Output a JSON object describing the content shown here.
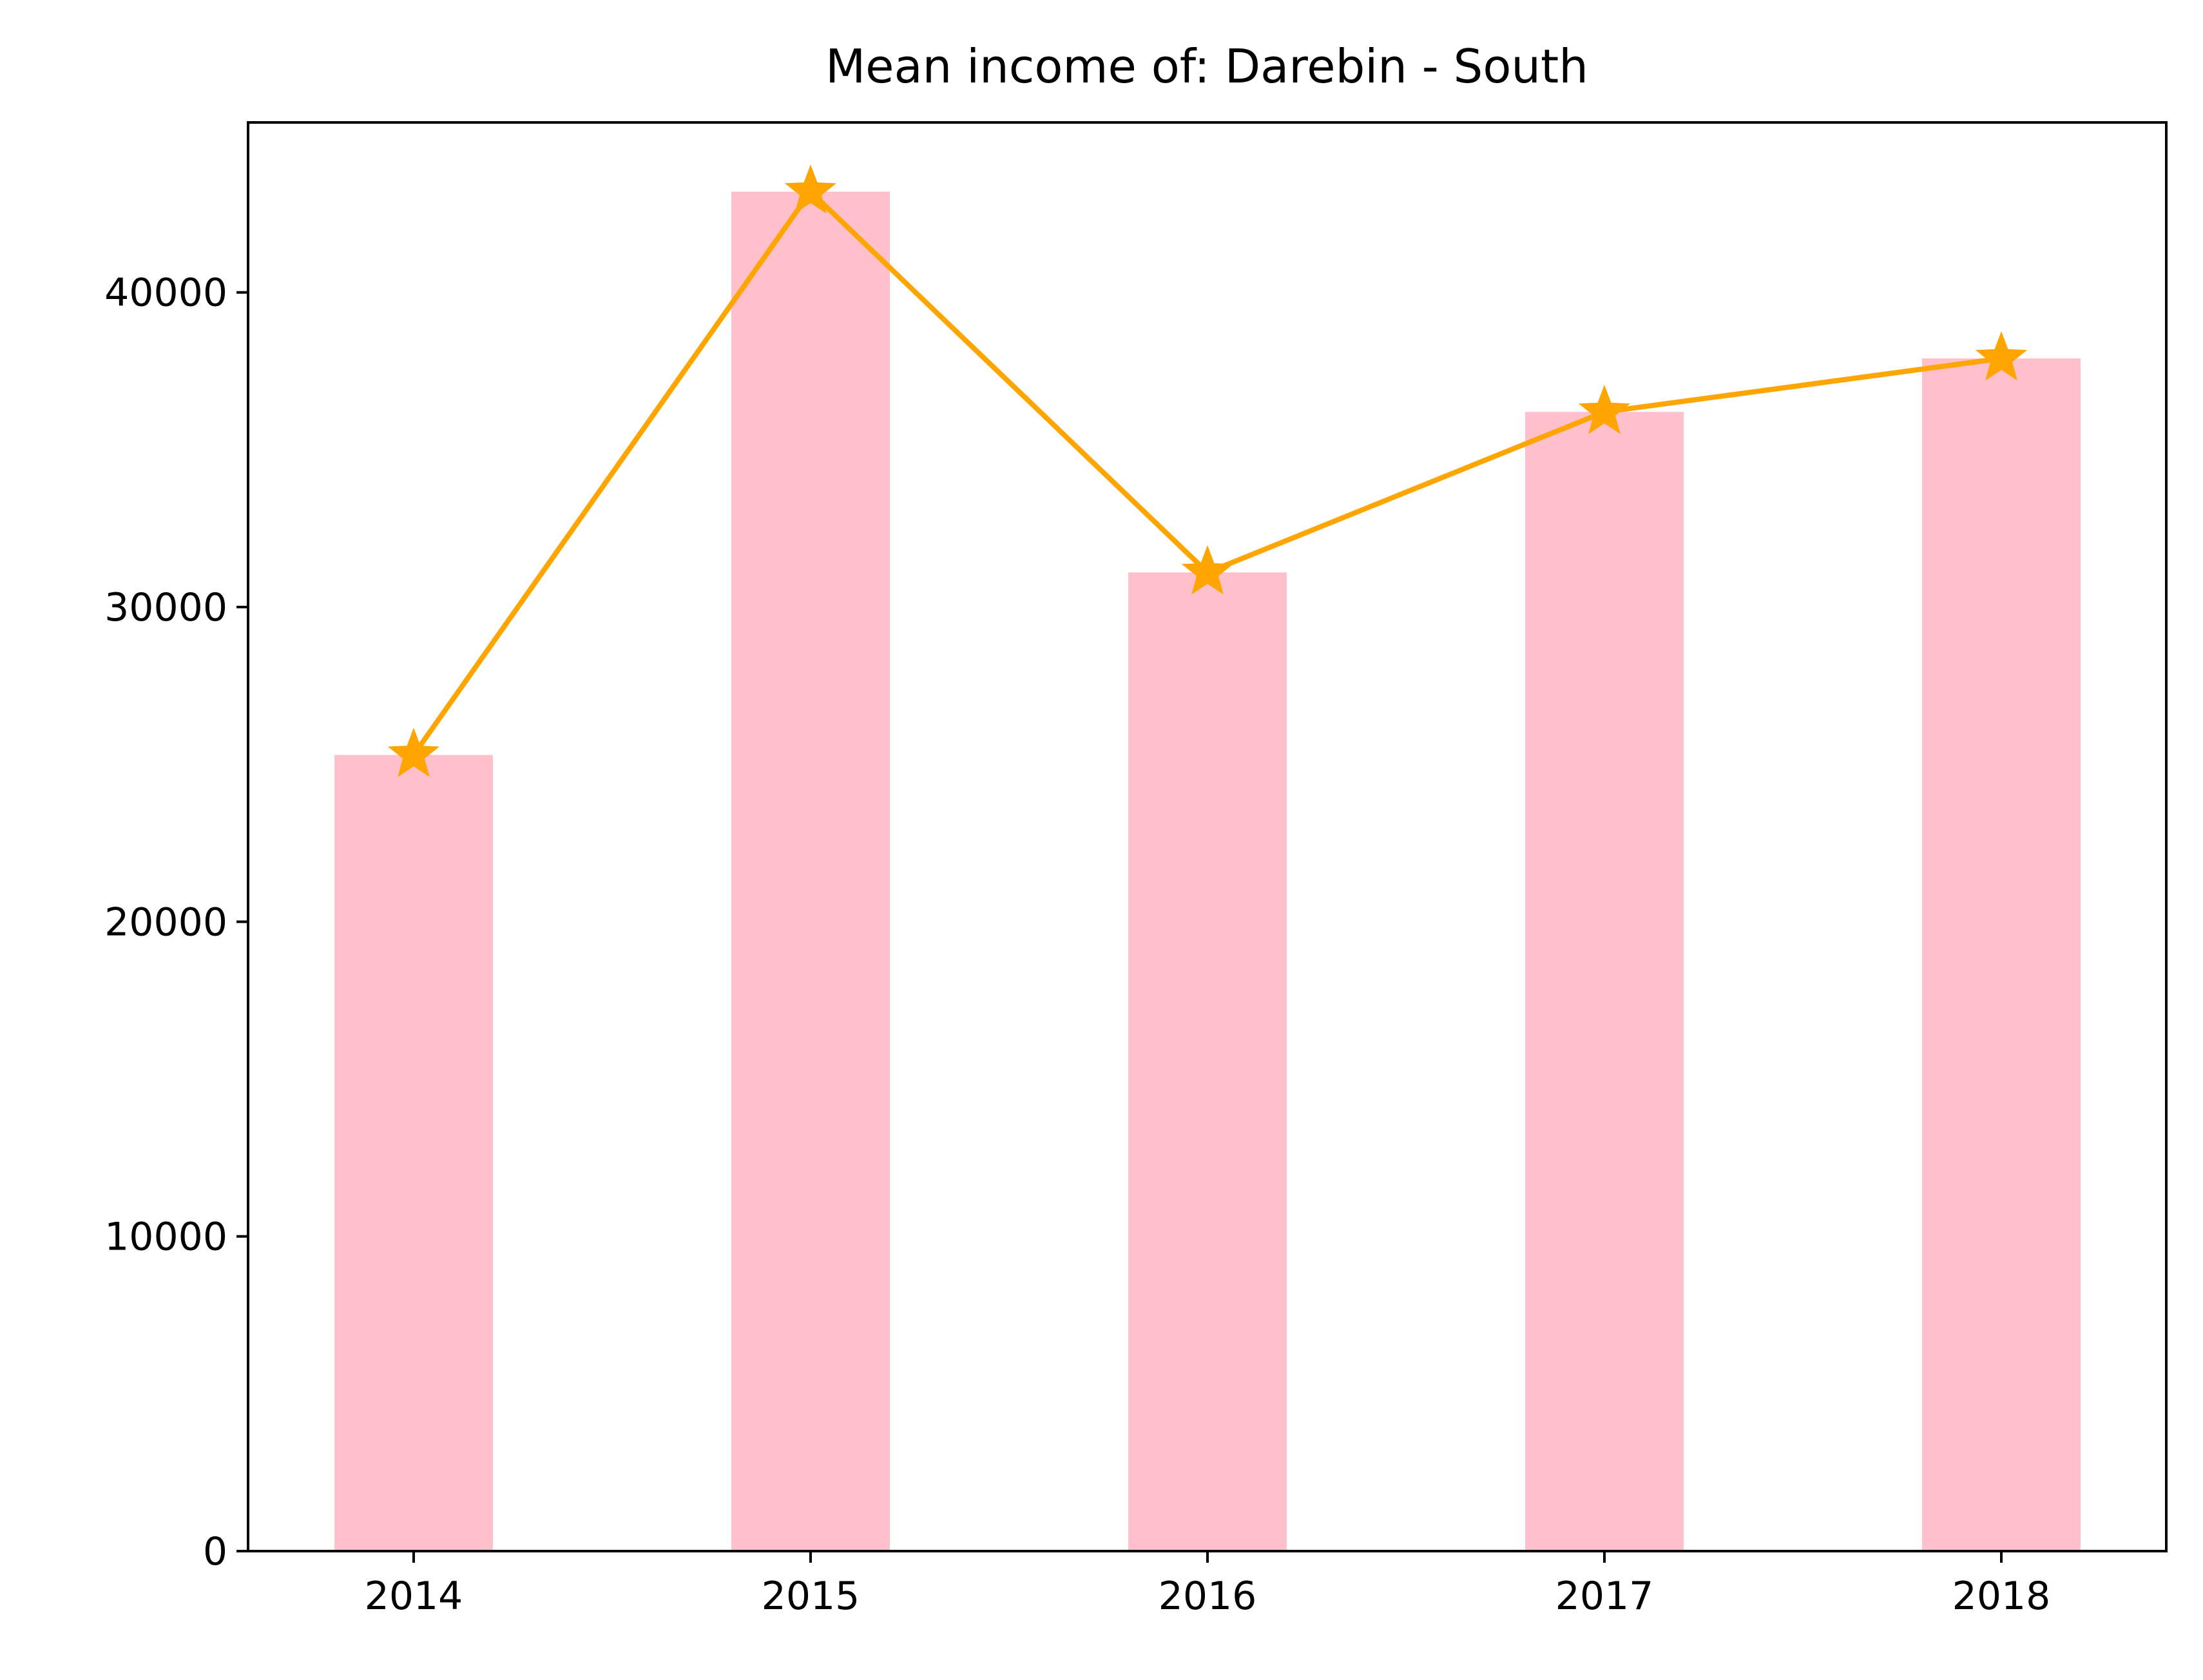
{
  "chart_data": {
    "type": "bar",
    "title": "Mean income of: Darebin - South",
    "xlabel": "",
    "ylabel": "",
    "categories": [
      "2014",
      "2015",
      "2016",
      "2017",
      "2018"
    ],
    "series": [
      {
        "kind": "bar",
        "values": [
          25300,
          43200,
          31100,
          36200,
          37900
        ],
        "color": "#FFC0CB"
      },
      {
        "kind": "line",
        "marker": "star",
        "values": [
          25300,
          43200,
          31100,
          36200,
          37900
        ],
        "color": "#FFA500"
      }
    ],
    "ylim": [
      0,
      45400
    ],
    "yticks": [
      0,
      10000,
      20000,
      30000,
      40000
    ],
    "ytick_labels": [
      "0",
      "10000",
      "20000",
      "30000",
      "40000"
    ],
    "grid": false,
    "legend": "none"
  }
}
